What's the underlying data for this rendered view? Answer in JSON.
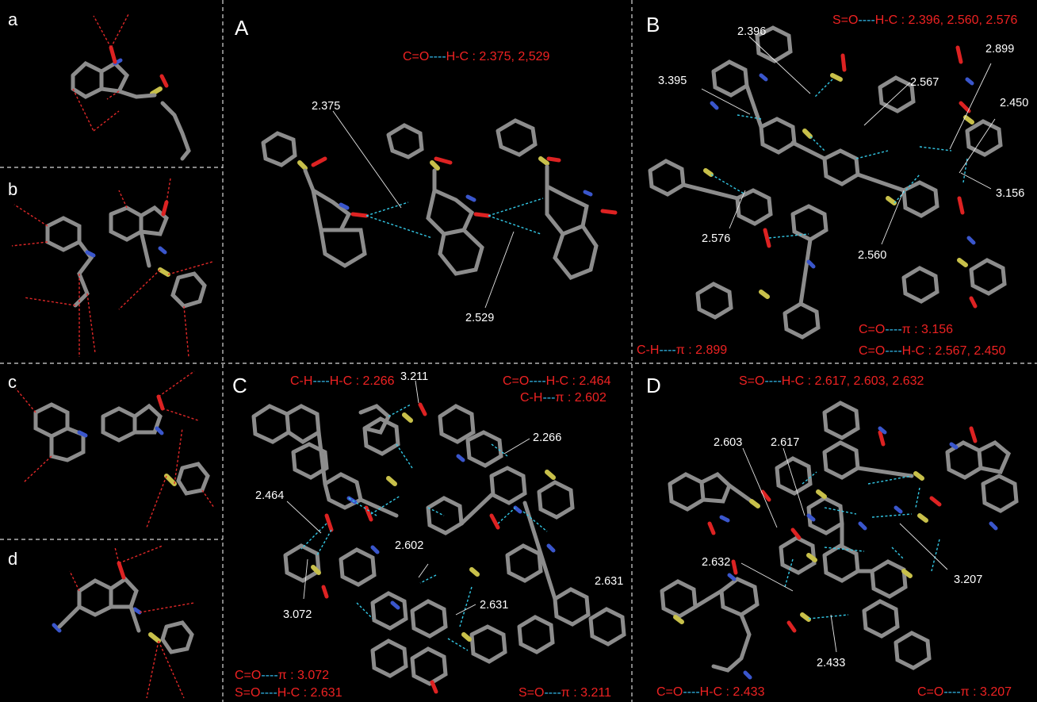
{
  "panels": {
    "a": {
      "label": "a"
    },
    "b": {
      "label": "b"
    },
    "c": {
      "label": "c"
    },
    "d": {
      "label": "d"
    },
    "A": {
      "label": "A",
      "caption_top": {
        "p1": "C=O",
        "p2": "----",
        "p3": "H-C : 2.375, 2,529"
      },
      "distances": [
        "2.375",
        "2.529"
      ]
    },
    "B": {
      "label": "B",
      "caption_top": {
        "p1": "S=O",
        "p2": "----",
        "p3": "H-C : 2.396, 2.560, 2.576"
      },
      "caption_bl": {
        "p1": "C-H",
        "p2": "----",
        "p3": "π : 2.899"
      },
      "caption_br1": {
        "p1": "C=O",
        "p2": "----",
        "p3": "π : 3.156"
      },
      "caption_br2": {
        "p1": "C=O",
        "p2": "----",
        "p3": "H-C : 2.567, 2.450"
      },
      "distances": [
        "2.396",
        "3.395",
        "2.567",
        "2.899",
        "2.450",
        "3.156",
        "2.576",
        "2.560"
      ]
    },
    "C": {
      "label": "C",
      "caption_tl": {
        "p1": "C-H",
        "p2": "----",
        "p3": "H-C : 2.266"
      },
      "caption_tr1": {
        "p1": "C=O",
        "p2": "----",
        "p3": "H-C : 2.464"
      },
      "caption_tr2": {
        "p1": "C-H",
        "p2": "---",
        "p3": "π : 2.602"
      },
      "caption_bl1": {
        "p1": "C=O",
        "p2": "----",
        "p3": "π : 3.072"
      },
      "caption_bl2": {
        "p1": "S=O",
        "p2": "----",
        "p3": "H-C : 2.631"
      },
      "caption_br": {
        "p1": "S=O",
        "p2": "----",
        "p3": "π : 3.211"
      },
      "distances": [
        "3.211",
        "2.266",
        "2.464",
        "2.602",
        "2.631",
        "3.072",
        "2.631"
      ]
    },
    "D": {
      "label": "D",
      "caption_top": {
        "p1": "S=O",
        "p2": "----",
        "p3": "H-C : 2.617, 2.603, 2.632"
      },
      "caption_bl": {
        "p1": "C=O",
        "p2": "----",
        "p3": "H-C : 2.433"
      },
      "caption_br": {
        "p1": "C=O",
        "p2": "----",
        "p3": "π : 3.207"
      },
      "distances": [
        "2.603",
        "2.617",
        "2.632",
        "3.207",
        "2.433"
      ]
    }
  },
  "colors": {
    "background": "#000000",
    "caption_red": "#ee2222",
    "caption_cyan": "#33bbee",
    "carbon": "#8c8c8c",
    "hydrogen": "#e8e8e8",
    "nitrogen": "#3a56cc",
    "oxygen": "#dd2222",
    "sulfur": "#c8c04a"
  }
}
